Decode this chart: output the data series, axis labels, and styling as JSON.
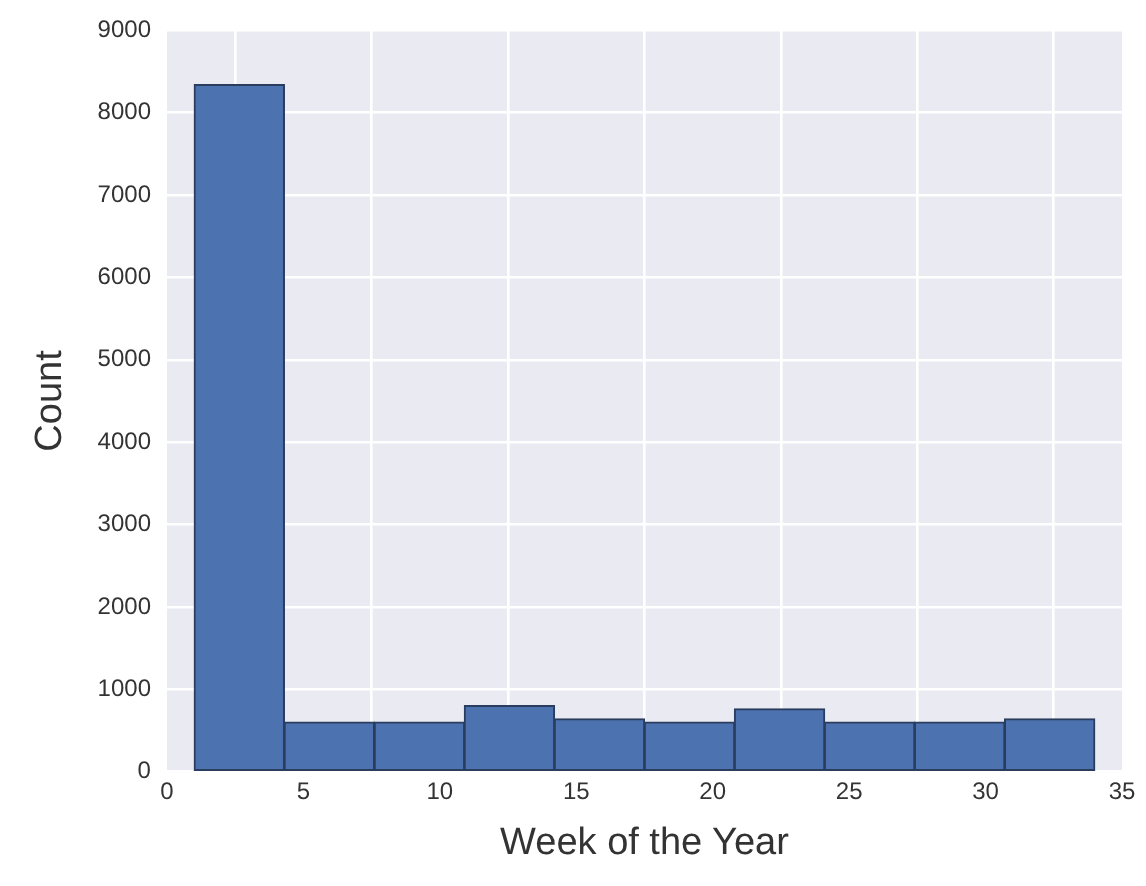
{
  "chart_data": {
    "type": "histogram",
    "xlabel": "Week of the Year",
    "ylabel": "Count",
    "bins": [
      1,
      4.3,
      7.6,
      10.9,
      14.2,
      17.5,
      20.8,
      24.1,
      27.4,
      30.7,
      34
    ],
    "values": [
      8340,
      600,
      600,
      800,
      640,
      600,
      760,
      600,
      600,
      640
    ],
    "color": "#4c72b0",
    "xlim": [
      0,
      35
    ],
    "xticks": [
      0,
      5,
      10,
      15,
      20,
      25,
      30,
      35
    ],
    "ylim": [
      0,
      9000
    ],
    "yticks": [
      0,
      1000,
      2000,
      3000,
      4000,
      5000,
      6000,
      7000,
      8000,
      9000
    ],
    "grid": true
  }
}
